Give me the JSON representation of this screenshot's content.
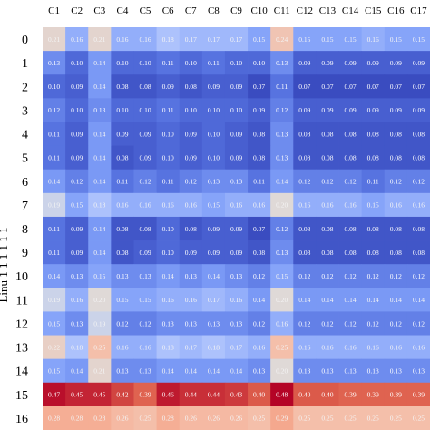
{
  "chart_data": {
    "type": "heatmap",
    "title": "",
    "xlabel": "",
    "ylabel": "Linu 1 1 1 1 1 1",
    "x_categories": [
      "C1",
      "C2",
      "C3",
      "C4",
      "C5",
      "C6",
      "C7",
      "C8",
      "C9",
      "C10",
      "C11",
      "C12",
      "C13",
      "C14",
      "C15",
      "C16",
      "C17"
    ],
    "y_categories": [
      "0",
      "1",
      "2",
      "3",
      "4",
      "5",
      "6",
      "7",
      "8",
      "9",
      "10",
      "11",
      "12",
      "13",
      "14",
      "15",
      "16"
    ],
    "values": [
      [
        0.21,
        0.16,
        0.21,
        0.16,
        0.16,
        0.18,
        0.17,
        0.17,
        0.17,
        0.15,
        0.24,
        0.15,
        0.15,
        0.15,
        0.16,
        0.15,
        0.15
      ],
      [
        0.13,
        0.1,
        0.14,
        0.1,
        0.1,
        0.11,
        0.1,
        0.11,
        0.1,
        0.1,
        0.13,
        0.09,
        0.09,
        0.09,
        0.09,
        0.09,
        0.09
      ],
      [
        0.1,
        0.09,
        0.14,
        0.08,
        0.08,
        0.09,
        0.08,
        0.09,
        0.09,
        0.07,
        0.11,
        0.07,
        0.07,
        0.07,
        0.07,
        0.07,
        0.07
      ],
      [
        0.12,
        0.1,
        0.13,
        0.1,
        0.1,
        0.11,
        0.1,
        0.1,
        0.1,
        0.09,
        0.12,
        0.09,
        0.09,
        0.09,
        0.09,
        0.09,
        0.09
      ],
      [
        0.11,
        0.09,
        0.14,
        0.09,
        0.09,
        0.1,
        0.09,
        0.1,
        0.09,
        0.08,
        0.13,
        0.08,
        0.08,
        0.08,
        0.08,
        0.08,
        0.08
      ],
      [
        0.11,
        0.09,
        0.14,
        0.08,
        0.09,
        0.1,
        0.09,
        0.1,
        0.09,
        0.08,
        0.13,
        0.08,
        0.08,
        0.08,
        0.08,
        0.08,
        0.08
      ],
      [
        0.14,
        0.12,
        0.14,
        0.11,
        0.12,
        0.11,
        0.12,
        0.13,
        0.13,
        0.11,
        0.14,
        0.12,
        0.12,
        0.12,
        0.11,
        0.12,
        0.12
      ],
      [
        0.19,
        0.15,
        0.18,
        0.16,
        0.16,
        0.16,
        0.16,
        0.15,
        0.16,
        0.16,
        0.2,
        0.16,
        0.16,
        0.16,
        0.15,
        0.16,
        0.16
      ],
      [
        0.11,
        0.09,
        0.14,
        0.08,
        0.08,
        0.1,
        0.08,
        0.09,
        0.09,
        0.07,
        0.12,
        0.08,
        0.08,
        0.08,
        0.08,
        0.08,
        0.08
      ],
      [
        0.11,
        0.09,
        0.14,
        0.08,
        0.09,
        0.1,
        0.09,
        0.09,
        0.09,
        0.08,
        0.13,
        0.08,
        0.08,
        0.08,
        0.08,
        0.08,
        0.08
      ],
      [
        0.14,
        0.13,
        0.15,
        0.13,
        0.13,
        0.14,
        0.13,
        0.14,
        0.13,
        0.12,
        0.15,
        0.12,
        0.12,
        0.12,
        0.12,
        0.12,
        0.12
      ],
      [
        0.19,
        0.16,
        0.2,
        0.15,
        0.15,
        0.16,
        0.16,
        0.17,
        0.16,
        0.14,
        0.2,
        0.14,
        0.14,
        0.14,
        0.14,
        0.14,
        0.14
      ],
      [
        0.15,
        0.13,
        0.19,
        0.12,
        0.12,
        0.13,
        0.13,
        0.13,
        0.13,
        0.12,
        0.16,
        0.12,
        0.12,
        0.12,
        0.12,
        0.12,
        0.12
      ],
      [
        0.22,
        0.18,
        0.25,
        0.16,
        0.16,
        0.18,
        0.17,
        0.18,
        0.17,
        0.16,
        0.25,
        0.16,
        0.16,
        0.16,
        0.16,
        0.16,
        0.16
      ],
      [
        0.15,
        0.14,
        0.21,
        0.13,
        0.13,
        0.14,
        0.14,
        0.14,
        0.14,
        0.13,
        0.2,
        0.13,
        0.13,
        0.13,
        0.13,
        0.13,
        0.13
      ],
      [
        0.47,
        0.45,
        0.45,
        0.42,
        0.39,
        0.46,
        0.44,
        0.44,
        0.43,
        0.4,
        0.48,
        0.4,
        0.4,
        0.39,
        0.39,
        0.39,
        0.39
      ],
      [
        0.28,
        0.28,
        0.28,
        0.26,
        0.25,
        0.28,
        0.26,
        0.26,
        0.26,
        0.25,
        0.29,
        0.25,
        0.25,
        0.25,
        0.25,
        0.25,
        0.25
      ]
    ],
    "colormap": [
      "#3a4cc0",
      "#dddcdc",
      "#b40426"
    ],
    "grid": false,
    "legend": "none"
  }
}
